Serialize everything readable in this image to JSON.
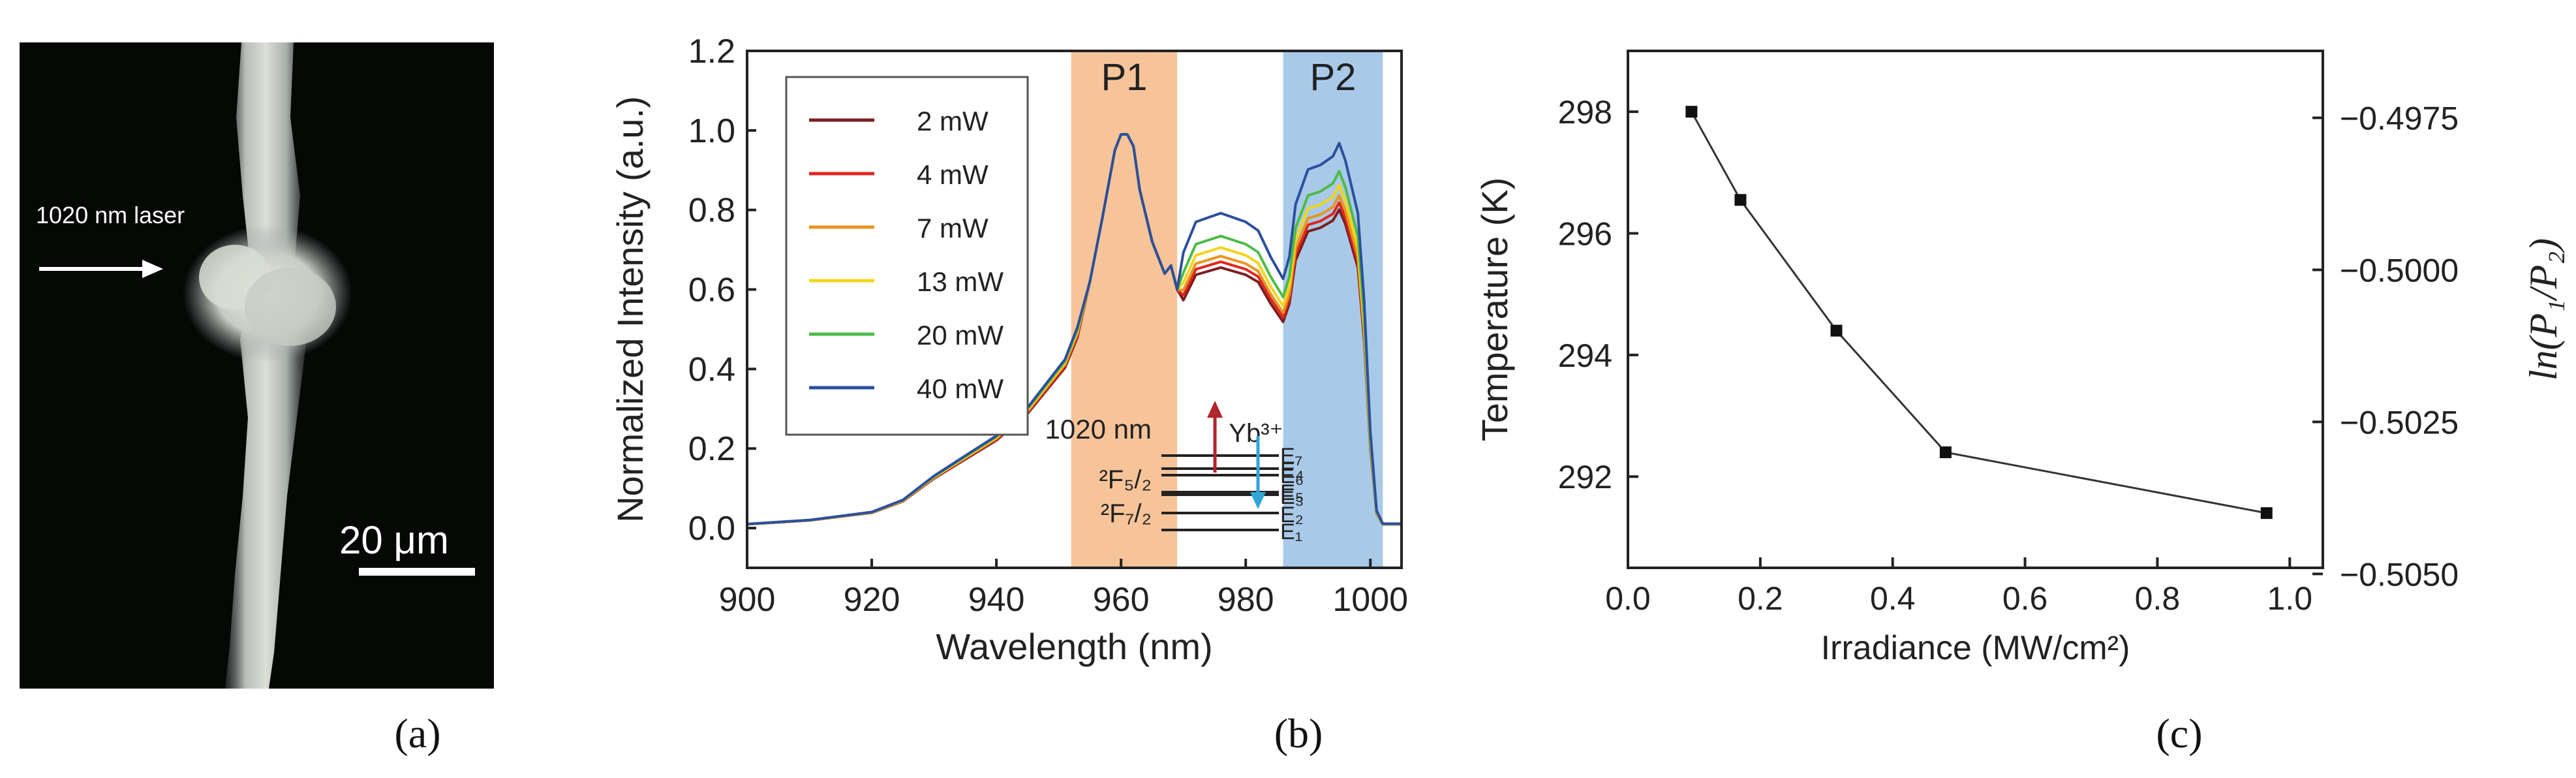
{
  "panel_labels": [
    "(a)",
    "(b)",
    "(c)"
  ],
  "micrograph": {
    "arrow_label": "1020 nm laser",
    "scale_bar_label": "20 μm"
  },
  "chart_data": [
    {
      "type": "line",
      "panel": "(b)",
      "title": "",
      "xlabel": "Wavelength (nm)",
      "ylabel": "Normalized Intensity (a.u.)",
      "xlim": [
        900,
        1005
      ],
      "ylim": [
        -0.1,
        1.2
      ],
      "xticks": [
        900,
        920,
        940,
        960,
        980,
        1000
      ],
      "yticks": [
        0.0,
        0.2,
        0.4,
        0.6,
        0.8,
        1.0,
        1.2
      ],
      "ytick_labels": [
        "0.0",
        "0.2",
        "0.4",
        "0.6",
        "0.8",
        "1.0",
        "1.2"
      ],
      "legend_position": "top-left",
      "bands": [
        {
          "label": "P1",
          "x0": 952,
          "x1": 969,
          "color": "#f7c49a"
        },
        {
          "label": "P2",
          "x0": 986,
          "x1": 1002,
          "color": "#a9c9e8"
        }
      ],
      "x": [
        900,
        910,
        920,
        925,
        930,
        935,
        940,
        945,
        948,
        951,
        953,
        955,
        957,
        959,
        960,
        961,
        962,
        963,
        965,
        967,
        968,
        969,
        970,
        972,
        974,
        976,
        978,
        980,
        982,
        984,
        986,
        987,
        988,
        990,
        992,
        994,
        995,
        996,
        998,
        999,
        1000,
        1001,
        1002,
        1005
      ],
      "base_curve": [
        0.01,
        0.02,
        0.04,
        0.07,
        0.13,
        0.18,
        0.23,
        0.3,
        0.36,
        0.42,
        0.5,
        0.62,
        0.78,
        0.95,
        0.99,
        0.99,
        0.96,
        0.85,
        0.72,
        0.64,
        0.66,
        0.6,
        0.63,
        0.7,
        0.71,
        0.72,
        0.71,
        0.7,
        0.68,
        0.62,
        0.57,
        0.62,
        0.74,
        0.82,
        0.83,
        0.85,
        0.88,
        0.84,
        0.72,
        0.52,
        0.22,
        0.04,
        0.01,
        0.01
      ],
      "series": [
        {
          "name": "2 mW",
          "color": "#7a1f1f",
          "p2_scale": 0.91
        },
        {
          "name": "4 mW",
          "color": "#e0261f",
          "p2_scale": 0.93
        },
        {
          "name": "7 mW",
          "color": "#e8951f",
          "p2_scale": 0.95
        },
        {
          "name": "13 mW",
          "color": "#f2d51a",
          "p2_scale": 0.98
        },
        {
          "name": "20 mW",
          "color": "#4dbb46",
          "p2_scale": 1.02
        },
        {
          "name": "40 mW",
          "color": "#2c4f9e",
          "p2_scale": 1.1
        }
      ],
      "inset": {
        "ion_label": "Yb³⁺",
        "upper_level": "²F₅/₂",
        "lower_level": "²F₇/₂",
        "excitation_label": "1020 nm",
        "upper_levels": [
          "E₇",
          "E₆",
          "E₅"
        ],
        "lower_levels": [
          "E₄",
          "E₃",
          "E₂",
          "E₁"
        ],
        "arrow_up_color": "#b0262c",
        "arrow_down_color": "#2fa6d8"
      }
    },
    {
      "type": "line",
      "panel": "(c)",
      "title": "",
      "xlabel": "Irradiance (MW/cm²)",
      "ylabel": "Temperature (K)",
      "y2label": "ln(P₁/P₂)",
      "xlim": [
        0.0,
        1.05
      ],
      "ylim": [
        290.5,
        299
      ],
      "xticks": [
        0.0,
        0.2,
        0.4,
        0.6,
        0.8,
        1.0
      ],
      "xtick_labels": [
        "0.0",
        "0.2",
        "0.4",
        "0.6",
        "0.8",
        "1.0"
      ],
      "yticks": [
        292,
        294,
        296,
        298
      ],
      "ytick_labels": [
        "292",
        "294",
        "296",
        "298"
      ],
      "y2ticks": [
        -0.4975,
        -0.5,
        -0.5025,
        -0.505
      ],
      "y2tick_labels": [
        "−0.4975",
        "−0.5000",
        "−0.5025",
        "−0.5050"
      ],
      "y2_at_y": [
        297.9,
        295.4,
        292.9,
        290.4
      ],
      "x": [
        0.096,
        0.17,
        0.315,
        0.48,
        0.965
      ],
      "y": [
        298.0,
        296.55,
        294.4,
        292.4,
        291.4
      ]
    }
  ]
}
